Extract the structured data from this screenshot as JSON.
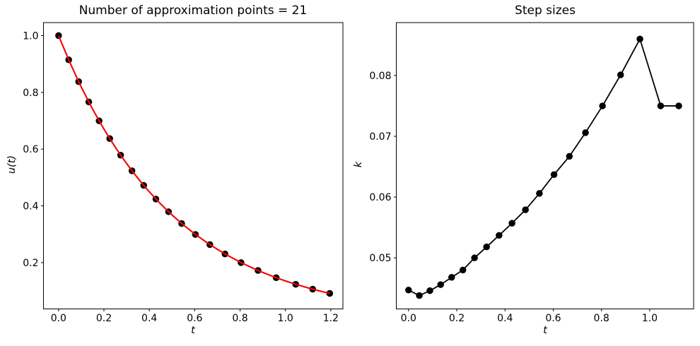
{
  "figure": {
    "background": "#ffffff",
    "spine_color": "#000000",
    "tick_color": "#000000"
  },
  "chart_data": [
    {
      "type": "line",
      "title": "Number of approximation points = 21",
      "xlabel": "t",
      "ylabel": "u(t)",
      "xlim": [
        -0.0665,
        1.2535
      ],
      "ylim": [
        0.0368,
        1.0458
      ],
      "grid": false,
      "legend": "none",
      "xticks": {
        "values": [
          0.0,
          0.2,
          0.4,
          0.6,
          0.8,
          1.0,
          1.2
        ],
        "labels": [
          "0.0",
          "0.2",
          "0.4",
          "0.6",
          "0.8",
          "1.0",
          "1.2"
        ]
      },
      "yticks": {
        "values": [
          0.2,
          0.4,
          0.6,
          0.8,
          1.0
        ],
        "labels": [
          "0.2",
          "0.4",
          "0.6",
          "0.8",
          "1.0"
        ]
      },
      "series": [
        {
          "name": "numerical-solution-points",
          "color": "#000000",
          "line_width": 1.8,
          "marker": "circle",
          "marker_size": 9.5,
          "x": [
            0.0,
            0.0447,
            0.0885,
            0.1331,
            0.1787,
            0.2255,
            0.2735,
            0.3235,
            0.3753,
            0.429,
            0.4847,
            0.5426,
            0.6032,
            0.6669,
            0.7336,
            0.8042,
            0.8792,
            0.9593,
            1.0453,
            1.1203,
            1.1953
          ],
          "y": [
            1.0,
            0.9145,
            0.8378,
            0.7663,
            0.6995,
            0.637,
            0.5787,
            0.5236,
            0.4721,
            0.424,
            0.3794,
            0.3378,
            0.2993,
            0.2635,
            0.2306,
            0.2002,
            0.1723,
            0.1468,
            0.1236,
            0.1064,
            0.0916
          ]
        },
        {
          "name": "exact-solution-curve",
          "color": "#ff0000",
          "line_width": 2.0,
          "marker": "none",
          "marker_size": 0,
          "x": [
            0.0,
            0.05,
            0.1,
            0.15,
            0.2,
            0.25,
            0.3,
            0.35,
            0.4,
            0.45,
            0.5,
            0.55,
            0.6,
            0.65,
            0.7,
            0.75,
            0.8,
            0.85,
            0.9,
            0.95,
            1.0,
            1.05,
            1.1,
            1.15,
            1.1953
          ],
          "y": [
            1.0,
            0.9048,
            0.8187,
            0.7408,
            0.6703,
            0.6065,
            0.5488,
            0.4966,
            0.4493,
            0.4066,
            0.3679,
            0.3329,
            0.3012,
            0.2725,
            0.2466,
            0.2231,
            0.2019,
            0.1827,
            0.1653,
            0.1496,
            0.1353,
            0.1225,
            0.1108,
            0.1003,
            0.0916
          ]
        }
      ]
    },
    {
      "type": "line",
      "title": "Step sizes",
      "xlabel": "t",
      "ylabel": "k",
      "xlim": [
        -0.0507,
        1.182
      ],
      "ylim": [
        0.0416,
        0.0887
      ],
      "grid": false,
      "legend": "none",
      "xticks": {
        "values": [
          0.0,
          0.2,
          0.4,
          0.6,
          0.8,
          1.0
        ],
        "labels": [
          "0.0",
          "0.2",
          "0.4",
          "0.6",
          "0.8",
          "1.0"
        ]
      },
      "yticks": {
        "values": [
          0.05,
          0.06,
          0.07,
          0.08
        ],
        "labels": [
          "0.05",
          "0.06",
          "0.07",
          "0.08"
        ]
      },
      "series": [
        {
          "name": "step-size-points",
          "color": "#000000",
          "line_width": 1.8,
          "marker": "circle",
          "marker_size": 9.5,
          "x": [
            0.0,
            0.0447,
            0.0885,
            0.1331,
            0.1787,
            0.2255,
            0.2735,
            0.3235,
            0.3753,
            0.429,
            0.4847,
            0.5426,
            0.6032,
            0.6669,
            0.7336,
            0.8042,
            0.8792,
            0.9593,
            1.0453,
            1.1203
          ],
          "y": [
            0.0447,
            0.0438,
            0.0446,
            0.0456,
            0.0468,
            0.048,
            0.05,
            0.0518,
            0.0537,
            0.0557,
            0.0579,
            0.0606,
            0.0637,
            0.0667,
            0.0706,
            0.075,
            0.0801,
            0.086,
            0.075,
            0.075
          ]
        }
      ]
    }
  ]
}
